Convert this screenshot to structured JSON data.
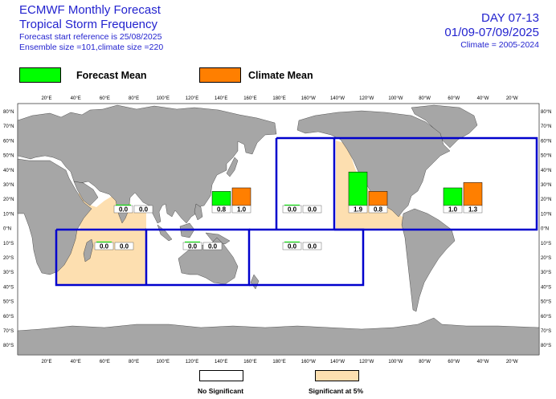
{
  "header": {
    "title_line1": "ECMWF Monthly Forecast",
    "title_line2": "Tropical Storm Frequency",
    "start_ref": "Forecast start reference is 25/08/2025",
    "ensemble": "Ensemble size =101,climate size =220",
    "day_range": "DAY 07-13",
    "date_range": "01/09-07/09/2025",
    "climate_period": "Climate = 2005-2024"
  },
  "legend": {
    "forecast_label": "Forecast Mean",
    "climate_label": "Climate Mean",
    "forecast_color": "#00ff00",
    "climate_color": "#ff7f00"
  },
  "significance": {
    "no_sig_label": "No Significant",
    "sig_label": "Significant at 5%",
    "sig_color": "#fddfb0",
    "no_sig_color": "#ffffff"
  },
  "axes": {
    "lon_labels": [
      "20°E",
      "40°E",
      "60°E",
      "80°E",
      "100°E",
      "120°E",
      "140°E",
      "160°E",
      "180°E",
      "160°W",
      "140°W",
      "120°W",
      "100°W",
      "80°W",
      "60°W",
      "40°W",
      "20°W"
    ],
    "lat_labels": [
      "80°N",
      "70°N",
      "60°N",
      "50°N",
      "40°N",
      "30°N",
      "20°N",
      "10°N",
      "0°N",
      "10°S",
      "20°S",
      "30°S",
      "40°S",
      "50°S",
      "60°S",
      "70°S",
      "80°S"
    ]
  },
  "colors": {
    "land": "#a6a6a6",
    "basin_border": "#0000cd",
    "ocean": "#ffffff"
  },
  "chart_data": {
    "type": "bar",
    "units": "mean tropical storm count",
    "series": [
      {
        "name": "Forecast Mean",
        "color": "#00ff00"
      },
      {
        "name": "Climate Mean",
        "color": "#ff7f00"
      }
    ],
    "regions": [
      {
        "forecast": 0.0,
        "climate": 0.0,
        "forecast_label": "0.0",
        "climate_label": "0.0",
        "significant": true
      },
      {
        "forecast": 0.8,
        "climate": 1.0,
        "forecast_label": "0.8",
        "climate_label": "1.0",
        "significant": false
      },
      {
        "forecast": 0.0,
        "climate": 0.0,
        "forecast_label": "0.0",
        "climate_label": "0.0",
        "significant": false
      },
      {
        "forecast": 1.9,
        "climate": 0.8,
        "forecast_label": "1.9",
        "climate_label": "0.8",
        "significant": true
      },
      {
        "forecast": 1.0,
        "climate": 1.3,
        "forecast_label": "1.0",
        "climate_label": "1.3",
        "significant": false
      },
      {
        "forecast": 0.0,
        "climate": 0.0,
        "forecast_label": "0.0",
        "climate_label": "0.0",
        "significant": true
      },
      {
        "forecast": 0.0,
        "climate": 0.0,
        "forecast_label": "0.0",
        "climate_label": "0.0",
        "significant": false
      },
      {
        "forecast": 0.0,
        "climate": 0.0,
        "forecast_label": "0.0",
        "climate_label": "0.0",
        "significant": false
      }
    ]
  }
}
